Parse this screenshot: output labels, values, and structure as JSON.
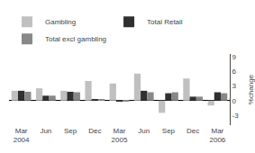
{
  "chart_data": {
    "type": "bar",
    "categories": [
      "Mar\n2004",
      "Jun",
      "Sep",
      "Dec",
      "Mar\n2005",
      "Jun",
      "Sep",
      "Dec",
      "Mar\n2006"
    ],
    "series": [
      {
        "name": "Gambling",
        "color": "#c0c0c0",
        "values": [
          2.0,
          2.5,
          2.0,
          4.0,
          3.5,
          5.5,
          -2.5,
          4.5,
          -1.0
        ]
      },
      {
        "name": "Total Retail",
        "color": "#303030",
        "values": [
          2.0,
          1.0,
          1.8,
          0.2,
          -0.2,
          2.0,
          1.5,
          0.8,
          1.7
        ]
      },
      {
        "name": "Total excl gambling",
        "color": "#888888",
        "values": [
          1.8,
          1.0,
          1.7,
          0.15,
          -0.15,
          1.7,
          1.7,
          0.8,
          1.5
        ]
      }
    ],
    "ylabel": "%change",
    "ylim": [
      -5,
      9.5
    ],
    "yticks": [
      -3,
      0,
      3,
      6,
      9
    ],
    "grid": false,
    "legend": "top left"
  }
}
